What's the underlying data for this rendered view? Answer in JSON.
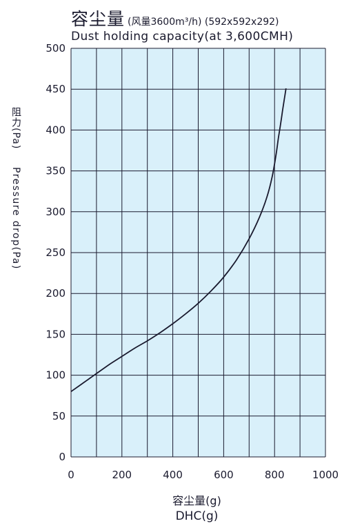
{
  "chart_data": {
    "type": "line",
    "title_cn": "容尘量",
    "title_spec": "(风量3600m³/h) (592x592x292)",
    "title_en": "Dust holding capacity(at 3,600CMH)",
    "ylabel_cn": "阻力(Pa)",
    "ylabel_en": "Pressure drop(Pa)",
    "xlabel_cn": "容尘量(g)",
    "xlabel_en": "DHC(g)",
    "xlim": [
      0,
      1000
    ],
    "ylim": [
      0,
      500
    ],
    "x_ticks": [
      "0",
      "200",
      "400",
      "600",
      "800",
      "1000"
    ],
    "y_ticks": [
      "0",
      "50",
      "100",
      "150",
      "200",
      "250",
      "300",
      "350",
      "400",
      "450",
      "500"
    ],
    "grid": true,
    "series": [
      {
        "x": [
          0,
          50,
          100,
          150,
          200,
          250,
          300,
          350,
          400,
          450,
          500,
          550,
          600,
          650,
          700,
          740,
          770,
          790,
          805,
          815,
          825,
          832,
          838,
          842,
          845
        ],
        "y": [
          80,
          91,
          102,
          113,
          123,
          133,
          142,
          152,
          163,
          175,
          188,
          203,
          220,
          241,
          267,
          293,
          318,
          342,
          368,
          390,
          410,
          425,
          437,
          445,
          451
        ]
      }
    ]
  },
  "colors": {
    "plot_bg": "#d9f0fa",
    "grid": "#1a1a2e",
    "line": "#1a1a2e"
  }
}
